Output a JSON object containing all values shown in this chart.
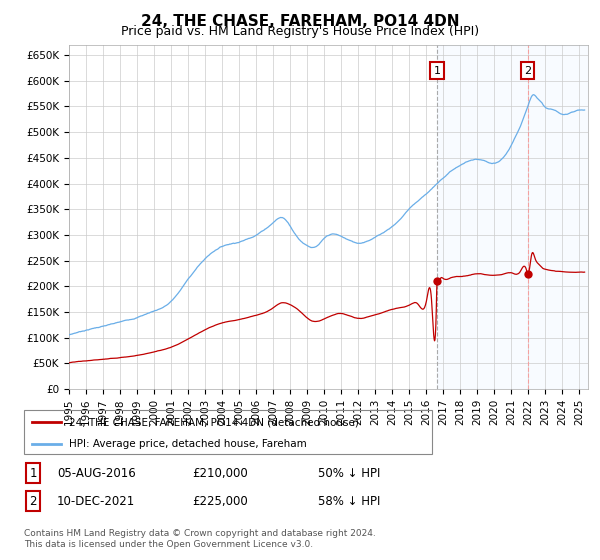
{
  "title": "24, THE CHASE, FAREHAM, PO14 4DN",
  "subtitle": "Price paid vs. HM Land Registry's House Price Index (HPI)",
  "ylabel_ticks": [
    "£0",
    "£50K",
    "£100K",
    "£150K",
    "£200K",
    "£250K",
    "£300K",
    "£350K",
    "£400K",
    "£450K",
    "£500K",
    "£550K",
    "£600K",
    "£650K"
  ],
  "ytick_values": [
    0,
    50000,
    100000,
    150000,
    200000,
    250000,
    300000,
    350000,
    400000,
    450000,
    500000,
    550000,
    600000,
    650000
  ],
  "ylim": [
    0,
    670000
  ],
  "xlim_start": 1995.0,
  "xlim_end": 2025.5,
  "hpi_color": "#6aaee8",
  "hpi_fill_color": "#ddeeff",
  "price_color": "#c00000",
  "vline1_color": "#aaaaaa",
  "vline2_color": "#f4a0a0",
  "sale1_x": 2016.622,
  "sale1_y": 210000,
  "sale2_x": 2021.956,
  "sale2_y": 225000,
  "legend_line1": "24, THE CHASE, FAREHAM, PO14 4DN (detached house)",
  "legend_line2": "HPI: Average price, detached house, Fareham",
  "table_row1": [
    "1",
    "05-AUG-2016",
    "£210,000",
    "50% ↓ HPI"
  ],
  "table_row2": [
    "2",
    "10-DEC-2021",
    "£225,000",
    "58% ↓ HPI"
  ],
  "footnote": "Contains HM Land Registry data © Crown copyright and database right 2024.\nThis data is licensed under the Open Government Licence v3.0.",
  "background_color": "#ffffff",
  "grid_color": "#cccccc",
  "title_fontsize": 11,
  "subtitle_fontsize": 9,
  "tick_fontsize": 7.5
}
